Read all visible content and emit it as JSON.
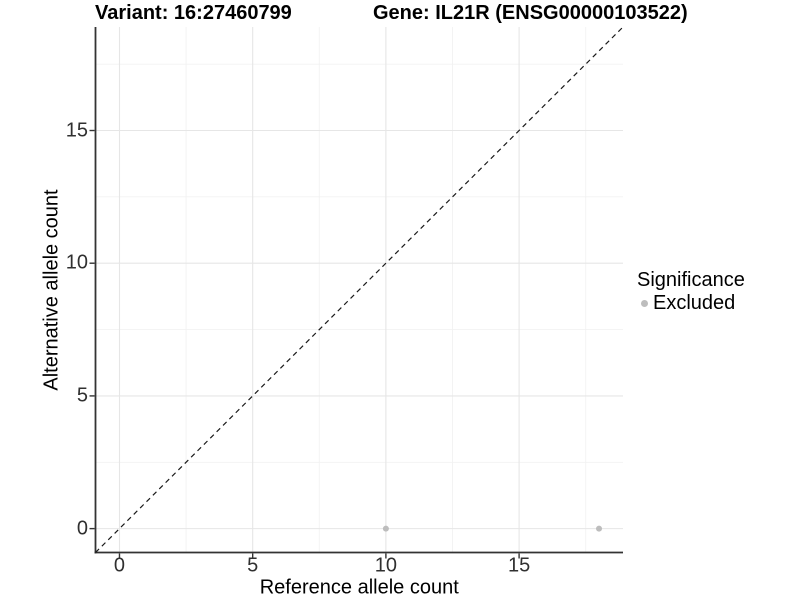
{
  "chart_data": {
    "type": "scatter",
    "title_left": "Variant: 16:27460799",
    "title_right": "Gene: IL21R (ENSG00000103522)",
    "xlabel": "Reference allele count",
    "ylabel": "Alternative allele count",
    "xlim": [
      -0.9,
      18.9
    ],
    "ylim": [
      -0.9,
      18.9
    ],
    "x_ticks": [
      0,
      5,
      10,
      15
    ],
    "y_ticks": [
      0,
      5,
      10,
      15
    ],
    "x_minor_ticks": [
      2.5,
      7.5,
      12.5,
      17.5
    ],
    "y_minor_ticks": [
      2.5,
      7.5,
      12.5,
      17.5
    ],
    "grid": "major and minor, light gray on white panel",
    "reference_line": {
      "type": "identity",
      "style": "dashed",
      "from": [
        -0.9,
        -0.9
      ],
      "to": [
        18.9,
        18.9
      ]
    },
    "series": [
      {
        "name": "Excluded",
        "color": "#bdbdbd",
        "point_radius": 3,
        "points": [
          [
            10,
            0
          ],
          [
            18,
            0
          ]
        ]
      }
    ],
    "legend": {
      "title": "Significance",
      "position": "right",
      "entries": [
        {
          "label": "Excluded",
          "color": "#bdbdbd"
        }
      ]
    },
    "colors": {
      "background": "#ffffff",
      "grid_major": "#e6e6e6",
      "grid_minor": "#f2f2f2",
      "axis_line": "#333333",
      "tick_mark": "#333333",
      "tick_text": "#303030",
      "title_text": "#000000",
      "reference_line": "#1a1a1a",
      "point": "#bdbdbd"
    }
  }
}
